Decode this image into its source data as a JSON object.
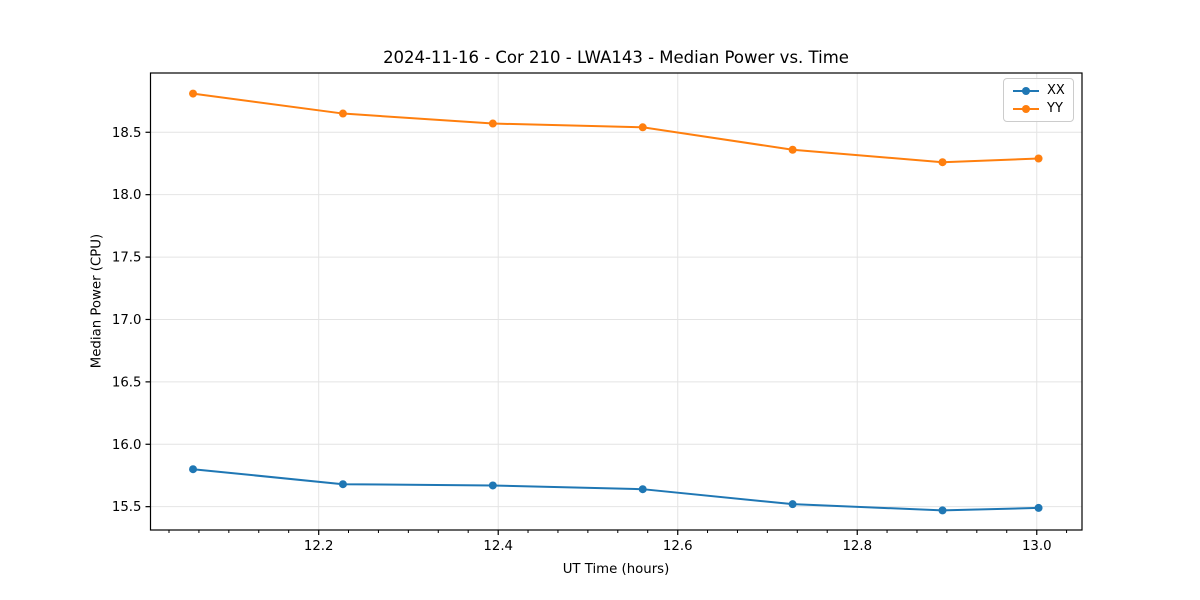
{
  "chart_data": {
    "type": "line",
    "title": "2024-11-16 - Cor 210 - LWA143 - Median Power vs. Time",
    "xlabel": "UT Time (hours)",
    "ylabel": "Median Power (CPU)",
    "x": [
      12.06,
      12.227,
      12.394,
      12.561,
      12.728,
      12.895,
      13.002
    ],
    "series": [
      {
        "name": "XX",
        "color": "#1f77b4",
        "values": [
          15.8,
          15.68,
          15.67,
          15.64,
          15.52,
          15.47,
          15.49
        ]
      },
      {
        "name": "YY",
        "color": "#ff7f0e",
        "values": [
          18.81,
          18.65,
          18.57,
          18.54,
          18.36,
          18.26,
          18.29
        ]
      }
    ],
    "xlim": [
      12.0126,
      13.0504
    ],
    "ylim": [
      15.313,
      18.975
    ],
    "xticks": [
      12.2,
      12.4,
      12.6,
      12.8,
      13.0
    ],
    "xtick_labels": [
      "12.2",
      "12.4",
      "12.6",
      "12.8",
      "13.0"
    ],
    "x_minor_tick_step_hours": 0.033333,
    "yticks": [
      15.5,
      16.0,
      16.5,
      17.0,
      17.5,
      18.0,
      18.5
    ],
    "ytick_labels": [
      "15.5",
      "16.0",
      "16.5",
      "17.0",
      "17.5",
      "18.0",
      "18.5"
    ],
    "grid": true,
    "legend_position": "top-right",
    "legend_items": [
      "XX",
      "YY"
    ]
  },
  "style_colors": {
    "grid": "#e4e4e4",
    "spine": "#000000",
    "tick": "#000000",
    "legend_border": "#cccccc"
  }
}
